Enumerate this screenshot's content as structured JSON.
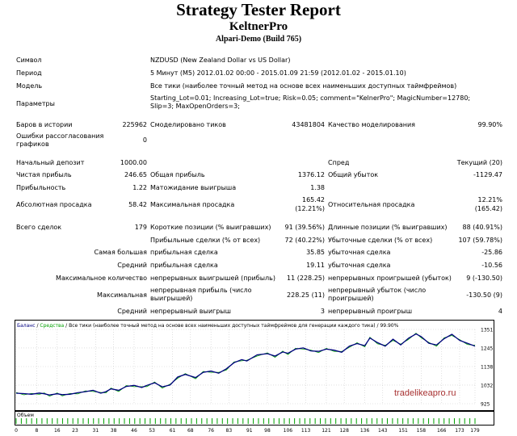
{
  "title": "Strategy Tester Report",
  "expert": "KeltnerPro",
  "server": "Alpari-Demo (Build 765)",
  "info": {
    "symbol_label": "Символ",
    "symbol_value": "NZDUSD (New Zealand Dollar vs US Dollar)",
    "period_label": "Период",
    "period_value": "5 Минут (M5) 2012.01.02 00:00 - 2015.01.09 21:59 (2012.01.02 - 2015.01.10)",
    "model_label": "Модель",
    "model_value": "Все тики (наиболее точный метод на основе всех наименьших доступных таймфреймов)",
    "params_label": "Параметры",
    "params_value": "Starting_Lot=0.01; Increasing_Lot=true; Risk=0.05; comment=\"KelnerPro\"; MagicNumber=12780; Slip=3; MaxOpenOrders=3;"
  },
  "stats": {
    "bars_label": "Баров в истории",
    "bars_value": "225962",
    "ticks_label": "Смоделировано тиков",
    "ticks_value": "43481804",
    "quality_label": "Качество моделирования",
    "quality_value": "99.90%",
    "errors_label": "Ошибки рассогласования графиков",
    "errors_value": "0",
    "deposit_label": "Начальный депозит",
    "deposit_value": "1000.00",
    "spread_label": "Спред",
    "spread_value": "Текущий (20)",
    "net_label": "Чистая прибыль",
    "net_value": "246.65",
    "gross_profit_label": "Общая прибыль",
    "gross_profit_value": "1376.12",
    "gross_loss_label": "Общий убыток",
    "gross_loss_value": "-1129.47",
    "pf_label": "Прибыльность",
    "pf_value": "1.22",
    "payoff_label": "Матожидание выигрыша",
    "payoff_value": "1.38",
    "abs_dd_label": "Абсолютная просадка",
    "abs_dd_value": "58.42",
    "max_dd_label": "Максимальная просадка",
    "max_dd_value1": "165.42",
    "max_dd_value2": "(12.21%)",
    "rel_dd_label": "Относительная просадка",
    "rel_dd_value1": "12.21%",
    "rel_dd_value2": "(165.42)",
    "trades_label": "Всего сделок",
    "trades_value": "179",
    "short_label": "Короткие позиции (% выигравших)",
    "short_value": "91 (39.56%)",
    "long_label": "Длинные позиции (% выигравших)",
    "long_value": "88 (40.91%)",
    "profit_trades_label": "Прибыльные сделки (% от всех)",
    "profit_trades_value": "72 (40.22%)",
    "loss_trades_label": "Убыточные сделки (% от всех)",
    "loss_trades_value": "107 (59.78%)",
    "largest_label": "Самая большая",
    "largest_profit_label": "прибыльная сделка",
    "largest_profit_value": "35.85",
    "largest_loss_label": "убыточная сделка",
    "largest_loss_value": "-25.86",
    "average_label": "Средний",
    "average_profit_label": "прибыльная сделка",
    "average_profit_value": "19.11",
    "average_loss_label": "убыточная сделка",
    "average_loss_value": "-10.56",
    "max_count_label": "Максимальное количество",
    "max_count_wins_label": "непрерывных выигрышей (прибыль)",
    "max_count_wins_value": "11 (228.25)",
    "max_count_losses_label": "непрерывных проигрышей (убыток)",
    "max_count_losses_value": "9 (-130.50)",
    "maximal_label": "Максимальная",
    "maximal_profit_label": "непрерывная прибыль (число выигрышей)",
    "maximal_profit_value": "228.25 (11)",
    "maximal_loss_label": "непрерывный убыток (число проигрышей)",
    "maximal_loss_value": "-130.50 (9)",
    "avg_cons_label": "Средний",
    "avg_cons_wins_label": "непрерывный выигрыш",
    "avg_cons_wins_value": "3",
    "avg_cons_losses_label": "непрерывный проигрыш",
    "avg_cons_losses_value": "4"
  },
  "chart_data": {
    "type": "line",
    "title": "Баланс / Средства / Все тики (наиболее точный метод на основе всех наименьших доступных таймфреймов для генерации каждого тика) / 99.90%",
    "legend": {
      "balance": "Баланс",
      "equity": "Средства",
      "rest": "/ Все тики (наиболее точный метод на основе всех наименьших доступных таймфреймов для генерации каждого тика) / 99.90%"
    },
    "y_ticks": [
      "1351",
      "1245",
      "1138",
      "1032",
      "925"
    ],
    "ylim": [
      925,
      1351
    ],
    "x_ticks": [
      "0",
      "8",
      "16",
      "23",
      "31",
      "38",
      "46",
      "53",
      "61",
      "68",
      "76",
      "83",
      "91",
      "98",
      "106",
      "113",
      "121",
      "128",
      "136",
      "143",
      "151",
      "158",
      "166",
      "173",
      "179"
    ],
    "xlim": [
      0,
      179
    ],
    "volume_label": "Объем",
    "watermark": "tradelikeapro.ru",
    "colors": {
      "balance": "#000080",
      "equity": "#00a000",
      "volume": "#00a000"
    },
    "series": [
      {
        "name": "Баланс",
        "x": [
          0,
          3,
          6,
          9,
          11,
          13,
          16,
          18,
          21,
          24,
          27,
          30,
          33,
          35,
          37,
          40,
          43,
          46,
          49,
          51,
          54,
          57,
          60,
          63,
          66,
          70,
          73,
          76,
          79,
          82,
          85,
          88,
          90,
          94,
          98,
          101,
          104,
          106,
          109,
          112,
          115,
          118,
          121,
          124,
          127,
          130,
          133,
          136,
          138,
          141,
          144,
          147,
          150,
          153,
          156,
          158,
          161,
          164,
          167,
          170,
          173,
          176,
          179
        ],
        "values": [
          985,
          983,
          979,
          986,
          982,
          975,
          982,
          977,
          979,
          988,
          994,
          1002,
          985,
          994,
          1010,
          1002,
          1024,
          1030,
          1018,
          1030,
          1045,
          1022,
          1032,
          1078,
          1093,
          1075,
          1105,
          1112,
          1100,
          1125,
          1160,
          1178,
          1170,
          1205,
          1212,
          1198,
          1222,
          1214,
          1238,
          1245,
          1228,
          1225,
          1238,
          1232,
          1220,
          1255,
          1270,
          1258,
          1302,
          1275,
          1255,
          1295,
          1262,
          1300,
          1325,
          1310,
          1272,
          1262,
          1298,
          1323,
          1288,
          1272,
          1255
        ]
      }
    ],
    "volume": [
      1,
      1,
      1,
      1,
      1,
      1,
      1,
      1,
      1,
      1,
      1,
      1,
      1,
      1,
      1,
      1,
      1,
      1,
      1,
      1,
      1,
      1,
      1,
      1,
      1,
      1,
      1,
      1,
      1,
      1,
      1,
      1,
      1,
      1,
      1,
      1,
      1,
      1,
      1,
      1,
      1,
      1,
      1,
      1,
      1,
      1,
      1,
      1,
      1,
      1,
      1,
      1,
      1,
      1,
      1,
      1,
      1,
      1,
      1,
      1,
      1,
      1,
      1,
      1,
      1,
      1,
      1,
      1,
      1,
      1,
      1,
      1,
      1,
      1,
      1,
      1,
      1,
      1,
      1,
      1,
      1,
      1,
      1,
      1,
      1,
      1,
      1,
      1,
      1,
      1
    ]
  }
}
